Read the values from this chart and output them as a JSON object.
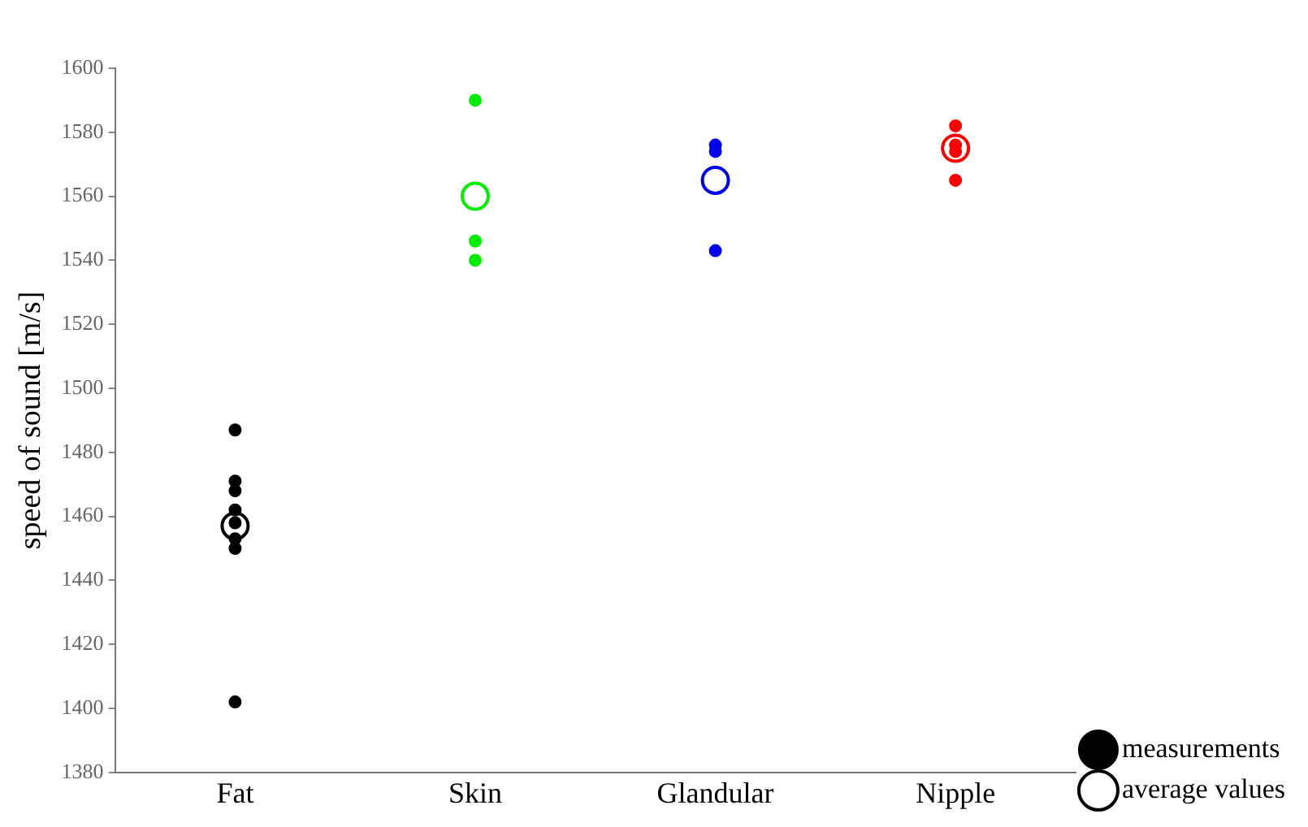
{
  "chart_data": {
    "type": "scatter",
    "ylabel": "speed of sound [m/s]",
    "categories": [
      "Fat",
      "Skin",
      "Glandular",
      "Nipple"
    ],
    "series": [
      {
        "name": "measurements",
        "color": "#000000",
        "marker": "circle",
        "x": [
          "Fat",
          "Fat",
          "Fat",
          "Fat",
          "Fat",
          "Fat",
          "Fat",
          "Fat",
          "Skin",
          "Skin",
          "Skin",
          "Glandular",
          "Glandular",
          "Glandular",
          "Nipple",
          "Nipple",
          "Nipple",
          "Nipple"
        ],
        "values": [
          1487,
          1471,
          1468,
          1462,
          1458,
          1453,
          1450,
          1402,
          1590,
          1546,
          1540,
          1576,
          1574,
          1543,
          1582,
          1576,
          1574,
          1565
        ],
        "colors": [
          "#000000",
          "#000000",
          "#000000",
          "#000000",
          "#000000",
          "#000000",
          "#000000",
          "#000000",
          "#00ee00",
          "#00ee00",
          "#00ee00",
          "#0000ee",
          "#0000ee",
          "#0000ee",
          "#ff0000",
          "#ff0000",
          "#ff0000",
          "#ff0000"
        ]
      },
      {
        "name": "average values",
        "color": "#000000",
        "marker": "circle",
        "x": [
          "Fat",
          "Skin",
          "Glandular",
          "Nipple"
        ],
        "values": [
          1457,
          1560,
          1565,
          1575
        ],
        "colors": [
          "#000000",
          "#00ee00",
          "#0000ee",
          "#ff0000"
        ]
      }
    ],
    "ylim": [
      1380,
      1600
    ],
    "yticks": [
      1380,
      1400,
      1420,
      1440,
      1460,
      1480,
      1500,
      1520,
      1540,
      1560,
      1580,
      1600
    ],
    "grid": false,
    "legend": "bottom right"
  }
}
